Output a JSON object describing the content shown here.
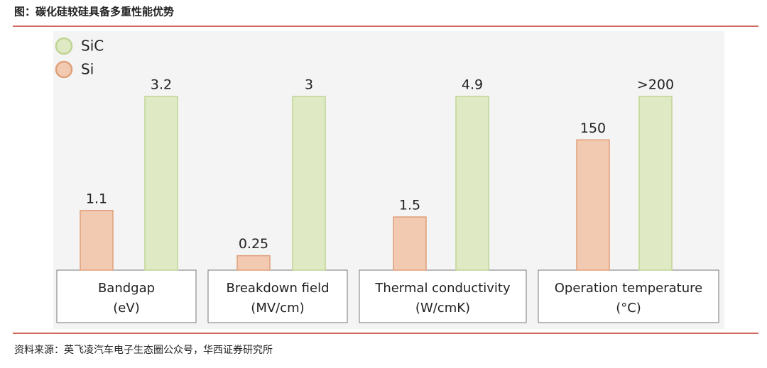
{
  "chart_data": {
    "type": "grouped_bar",
    "title": "图：碳化硅较硅具备多重性能优势",
    "source": "资料来源：英飞凌汽车电子生态圈公众号，华西证券研究所",
    "categories": [
      "Bandgap",
      "Breakdown field",
      "Thermal conductivity",
      "Operation temperature"
    ],
    "category_units": [
      "(eV)",
      "(MV/cm)",
      "(W/cmK)",
      "(°C)"
    ],
    "legend_position": "top-left",
    "series": [
      {
        "name": "SiC",
        "color": "#dfeac4",
        "stroke": "#bfd494",
        "values": [
          3.2,
          3,
          4.9,
          200
        ],
        "value_labels": [
          "3.2",
          "3",
          "4.9",
          ">200"
        ]
      },
      {
        "name": "Si",
        "color": "#f2c9b1",
        "stroke": "#e0a07a",
        "values": [
          1.1,
          0.25,
          1.5,
          150
        ]
      }
    ]
  }
}
